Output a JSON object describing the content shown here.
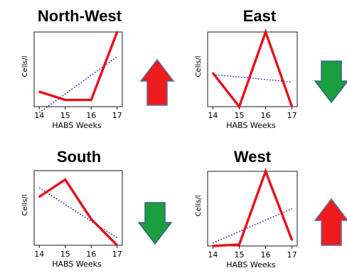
{
  "chart_data": [
    {
      "type": "line",
      "title": "North-West",
      "xlabel": "HABS Weeks",
      "ylabel": "Cells/l",
      "x": [
        14,
        15,
        16,
        17
      ],
      "xlim": [
        13.8,
        17.2
      ],
      "ylim": [
        0,
        100
      ],
      "grid": false,
      "series": [
        {
          "values": [
            20,
            9,
            9,
            100
          ],
          "color": "#e8101b",
          "style": "solid"
        }
      ],
      "trend": {
        "values": [
          -8,
          67
        ],
        "color": "#2020d8",
        "style": "dotted"
      },
      "arrow": {
        "direction": "up",
        "color": "#ee1c1c",
        "icon": "up-arrow-icon"
      }
    },
    {
      "type": "line",
      "title": "East",
      "xlabel": "HABS Weeks",
      "ylabel": "Cells/l",
      "x": [
        14,
        15,
        16,
        17
      ],
      "xlim": [
        13.8,
        17.2
      ],
      "ylim": [
        0,
        100
      ],
      "grid": false,
      "series": [
        {
          "values": [
            45,
            0,
            100,
            0
          ],
          "color": "#e8101b",
          "style": "solid"
        }
      ],
      "trend": {
        "values": [
          43,
          33
        ],
        "color": "#2020d8",
        "style": "dotted"
      },
      "arrow": {
        "direction": "down",
        "color": "#1a9e3e",
        "icon": "down-arrow-icon"
      }
    },
    {
      "type": "line",
      "title": "South",
      "xlabel": "HABS Weeks",
      "ylabel": "Cells/l",
      "x": [
        14,
        15,
        16,
        17
      ],
      "xlim": [
        13.8,
        17.2
      ],
      "ylim": [
        0,
        100
      ],
      "grid": false,
      "series": [
        {
          "values": [
            65,
            88,
            35,
            0
          ],
          "color": "#e8101b",
          "style": "solid"
        }
      ],
      "trend": {
        "values": [
          77,
          10
        ],
        "color": "#2020d8",
        "style": "dotted"
      },
      "arrow": {
        "direction": "down",
        "color": "#1a9e3e",
        "icon": "down-arrow-icon"
      }
    },
    {
      "type": "line",
      "title": "West",
      "xlabel": "HABS Weeks",
      "ylabel": "Cells/l",
      "x": [
        14,
        15,
        16,
        17
      ],
      "xlim": [
        13.8,
        17.2
      ],
      "ylim": [
        0,
        100
      ],
      "grid": false,
      "series": [
        {
          "values": [
            0,
            2,
            100,
            8
          ],
          "color": "#e8101b",
          "style": "solid"
        }
      ],
      "trend": {
        "values": [
          4,
          50
        ],
        "color": "#2020d8",
        "style": "dotted"
      },
      "arrow": {
        "direction": "up",
        "color": "#ee1c1c",
        "icon": "up-arrow-icon"
      }
    }
  ]
}
